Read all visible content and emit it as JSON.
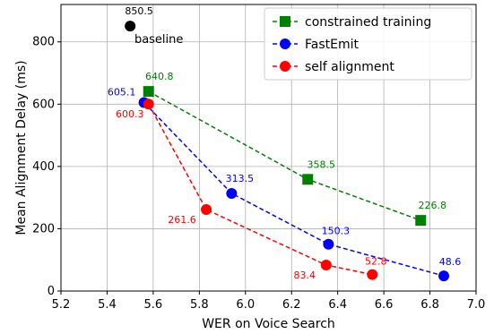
{
  "chart_data": {
    "type": "line",
    "xlabel": "WER on Voice Search",
    "ylabel": "Mean Alignment Delay (ms)",
    "xlim": [
      5.2,
      7.0
    ],
    "ylim": [
      0,
      920
    ],
    "xticks": [
      "5.2",
      "5.4",
      "5.6",
      "5.8",
      "6.0",
      "6.2",
      "6.4",
      "6.6",
      "6.8",
      "7.0"
    ],
    "yticks": [
      "0",
      "200",
      "400",
      "600",
      "800"
    ],
    "grid": true,
    "legend_position": "top-right",
    "baseline": {
      "label": "baseline",
      "x": 5.5,
      "y": 850.5,
      "value_label": "850.5",
      "color": "#000000"
    },
    "series": [
      {
        "name": "constrained training",
        "color": "#008000",
        "marker": "square",
        "x": [
          5.58,
          6.27,
          6.76
        ],
        "y": [
          640.8,
          358.5,
          226.8
        ],
        "labels": [
          "640.8",
          "358.5",
          "226.8"
        ]
      },
      {
        "name": "FastEmit",
        "color": "#0000ff",
        "marker": "circle",
        "x": [
          5.56,
          5.94,
          6.36,
          6.86
        ],
        "y": [
          605.1,
          313.5,
          150.3,
          48.6
        ],
        "labels": [
          "605.1",
          "313.5",
          "150.3",
          "48.6"
        ]
      },
      {
        "name": "self alignment",
        "color": "#ff0000",
        "marker": "circle",
        "x": [
          5.58,
          5.83,
          6.35,
          6.55
        ],
        "y": [
          600.3,
          261.6,
          83.4,
          52.8
        ],
        "labels": [
          "600.3",
          "261.6",
          "83.4",
          "52.8"
        ]
      }
    ]
  }
}
